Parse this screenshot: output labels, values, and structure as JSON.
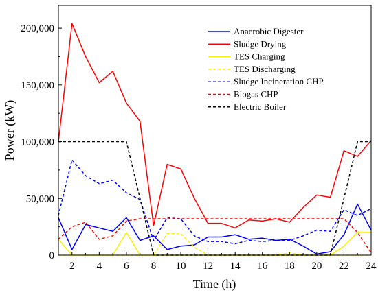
{
  "chart_data": {
    "type": "line",
    "xlabel": "Time (h)",
    "ylabel": "Power (kW)",
    "xlim": [
      1,
      24
    ],
    "ylim": [
      0,
      220000
    ],
    "x_ticks": [
      2,
      4,
      6,
      8,
      10,
      12,
      14,
      16,
      18,
      20,
      22,
      24
    ],
    "x_tick_labels": [
      "2",
      "4",
      "6",
      "8",
      "10",
      "12",
      "14",
      "16",
      "18",
      "20",
      "22",
      "24"
    ],
    "y_ticks": [
      0,
      50000,
      100000,
      150000,
      200000
    ],
    "y_tick_labels": [
      "0",
      "50,000",
      "100,000",
      "150,000",
      "200,000"
    ],
    "grid": false,
    "legend_position": "top-right",
    "x": [
      1,
      2,
      3,
      4,
      5,
      6,
      7,
      8,
      9,
      10,
      11,
      12,
      13,
      14,
      15,
      16,
      17,
      18,
      19,
      20,
      21,
      22,
      23,
      24
    ],
    "series": [
      {
        "name": "Anaerobic Digester",
        "color": "#0000ff",
        "dash": "solid",
        "values": [
          33000,
          5000,
          27000,
          24000,
          21000,
          33000,
          13000,
          17000,
          5000,
          8000,
          9000,
          16000,
          16000,
          18000,
          14000,
          15000,
          13000,
          14000,
          8000,
          1000,
          3000,
          18000,
          45000,
          22000
        ]
      },
      {
        "name": "Sludge Drying",
        "color": "#ff0000",
        "dash": "solid",
        "values": [
          100000,
          204000,
          175000,
          152000,
          162000,
          134000,
          118000,
          26000,
          80000,
          76000,
          50000,
          28000,
          28000,
          24000,
          31000,
          30000,
          32000,
          29000,
          42000,
          53000,
          51000,
          92000,
          87000,
          101000
        ]
      },
      {
        "name": "TES Charging",
        "color": "#ffee00",
        "dash": "solid",
        "values": [
          14000,
          0,
          0,
          0,
          0,
          20000,
          0,
          0,
          0,
          0,
          0,
          0,
          0,
          0,
          0,
          0,
          0,
          0,
          0,
          0,
          0,
          8000,
          20000,
          20000
        ]
      },
      {
        "name": "TES Discharging",
        "color": "#ffee00",
        "dash": "dashed",
        "values": [
          0,
          0,
          0,
          0,
          0,
          0,
          0,
          0,
          19000,
          19000,
          7000,
          0,
          0,
          0,
          0,
          0,
          0,
          2000,
          0,
          0,
          0,
          0,
          0,
          0
        ]
      },
      {
        "name": "Sludge Incineration CHP",
        "color": "#0000ff",
        "dash": "dashed",
        "values": [
          35000,
          84000,
          70000,
          63000,
          66000,
          55000,
          49000,
          13000,
          33000,
          32000,
          17000,
          12000,
          12000,
          10000,
          13000,
          12000,
          13000,
          13000,
          17000,
          22000,
          21000,
          40000,
          35000,
          41000
        ]
      },
      {
        "name": "Biogas CHP",
        "color": "#ff0000",
        "dash": "dashed",
        "values": [
          14000,
          25000,
          29000,
          14000,
          17000,
          30000,
          32000,
          32000,
          32000,
          32000,
          32000,
          32000,
          32000,
          32000,
          32000,
          32000,
          32000,
          32000,
          32000,
          32000,
          32000,
          32000,
          20000,
          2000
        ]
      },
      {
        "name": "Electric Boiler",
        "color": "#000000",
        "dash": "dashed",
        "values": [
          100000,
          100000,
          100000,
          100000,
          100000,
          100000,
          50000,
          0,
          0,
          0,
          0,
          0,
          0,
          0,
          0,
          0,
          0,
          0,
          0,
          0,
          0,
          50000,
          100000,
          100000
        ]
      }
    ]
  }
}
